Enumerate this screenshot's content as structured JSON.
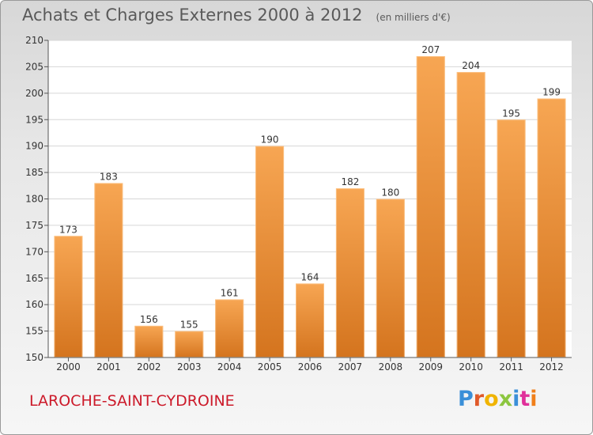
{
  "header": {
    "title": "Achats et Charges Externes 2000 à 2012",
    "unit": "(en milliers d'€)"
  },
  "footer": {
    "commune": "LAROCHE-SAINT-CYDROINE",
    "logo_text": "Proxiti",
    "logo_colors": [
      "#3a8fd8",
      "#e05a2a",
      "#f0b400",
      "#8cc63f",
      "#3a8fd8",
      "#e0309a",
      "#f07f1a"
    ]
  },
  "colors": {
    "bar_light": "#f7a653",
    "bar_dark": "#d4741e",
    "grid": "#d6d6d6",
    "axis": "#555555",
    "text": "#333333"
  },
  "chart_data": {
    "type": "bar",
    "title": "Achats et Charges Externes 2000 à 2012",
    "ylabel": "(en milliers d'€)",
    "categories": [
      "2000",
      "2001",
      "2002",
      "2003",
      "2004",
      "2005",
      "2006",
      "2007",
      "2008",
      "2009",
      "2010",
      "2011",
      "2012"
    ],
    "values": [
      173,
      183,
      156,
      155,
      161,
      190,
      164,
      182,
      180,
      207,
      204,
      195,
      199
    ],
    "ylim": [
      150,
      210
    ],
    "yticks": [
      150,
      155,
      160,
      165,
      170,
      175,
      180,
      185,
      190,
      195,
      200,
      205,
      210
    ],
    "grid": true,
    "data_labels": true
  }
}
